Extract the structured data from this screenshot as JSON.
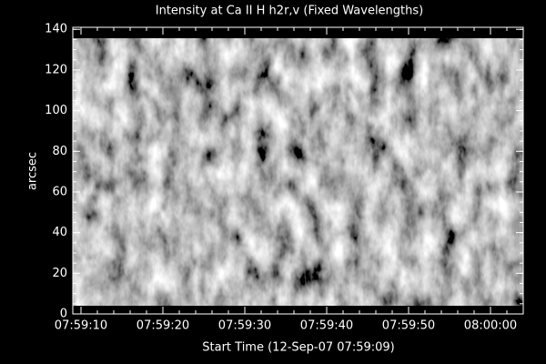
{
  "chart_data": {
    "type": "image",
    "title": "Intensity at Ca II H h2r,v (Fixed Wavelengths)",
    "x_label": "Start Time (12-Sep-07 07:59:09)",
    "y_label": "arcsec",
    "xlim": [
      9,
      64
    ],
    "xticks": [
      {
        "value": 10,
        "label": "07:59:10"
      },
      {
        "value": 20,
        "label": "07:59:20"
      },
      {
        "value": 30,
        "label": "07:59:30"
      },
      {
        "value": 40,
        "label": "07:59:40"
      },
      {
        "value": 50,
        "label": "07:59:50"
      },
      {
        "value": 60,
        "label": "08:00:00"
      }
    ],
    "ylim": [
      0,
      141
    ],
    "yticks": [
      0,
      20,
      40,
      60,
      80,
      100,
      120,
      140
    ],
    "color": "#000000"
  }
}
